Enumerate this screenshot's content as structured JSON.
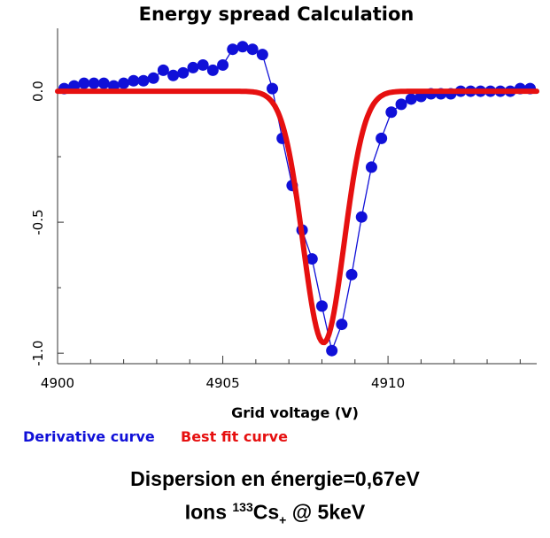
{
  "chart_data": {
    "type": "line",
    "title": "Energy spread Calculation",
    "xlabel": "Grid voltage (V)",
    "ylabel": "",
    "xlim": [
      4900,
      4914.5
    ],
    "ylim": [
      -1.04,
      0.24
    ],
    "x_major_ticks": [
      4900,
      4905,
      4910
    ],
    "x_minor_ticks": [
      4901,
      4902,
      4903,
      4904,
      4906,
      4907,
      4908,
      4909,
      4911,
      4912,
      4913,
      4914
    ],
    "y_major_ticks": [
      0.0,
      -0.5,
      -1.0
    ],
    "x_tick_labels": [
      "4900",
      "4905",
      "4910"
    ],
    "y_tick_labels": [
      "0.0",
      "-0.5",
      "-1.0"
    ],
    "grid": false,
    "legend_position": "bottom-left",
    "series": [
      {
        "name": "Derivative curve",
        "color": "#1010d8",
        "style": "line-with-markers",
        "x": [
          4900.2,
          4900.5,
          4900.8,
          4901.1,
          4901.4,
          4901.7,
          4902.0,
          4902.3,
          4902.6,
          4902.9,
          4903.2,
          4903.5,
          4903.8,
          4904.1,
          4904.4,
          4904.7,
          4905.0,
          4905.3,
          4905.6,
          4905.9,
          4906.2,
          4906.5,
          4906.8,
          4907.1,
          4907.4,
          4907.7,
          4908.0,
          4908.3,
          4908.6,
          4908.9,
          4909.2,
          4909.5,
          4909.8,
          4910.1,
          4910.4,
          4910.7,
          4911.0,
          4911.3,
          4911.6,
          4911.9,
          4912.2,
          4912.5,
          4912.8,
          4913.1,
          4913.4,
          4913.7,
          4914.0,
          4914.3
        ],
        "y": [
          0.01,
          0.02,
          0.03,
          0.03,
          0.03,
          0.02,
          0.03,
          0.04,
          0.04,
          0.05,
          0.08,
          0.06,
          0.07,
          0.09,
          0.1,
          0.08,
          0.1,
          0.16,
          0.17,
          0.16,
          0.14,
          0.01,
          -0.18,
          -0.36,
          -0.53,
          -0.64,
          -0.82,
          -0.99,
          -0.89,
          -0.7,
          -0.48,
          -0.29,
          -0.18,
          -0.08,
          -0.05,
          -0.03,
          -0.02,
          -0.01,
          -0.01,
          -0.01,
          0.0,
          0.0,
          0.0,
          0.0,
          0.0,
          0.0,
          0.01,
          0.01
        ]
      },
      {
        "name": "Best fit curve",
        "color": "#e61010",
        "style": "thick-line",
        "model": "gaussian",
        "baseline": 0.0,
        "amplitude": -0.96,
        "center": 4908.05,
        "sigma": 0.62,
        "x_start": 4900,
        "x_end": 4914.5
      }
    ]
  },
  "caption": {
    "line1": "Dispersion en énergie=0,67eV",
    "line2_prefix": "Ions ",
    "line2_sup": "133",
    "line2_element": "Cs",
    "line2_sub": "+",
    "line2_suffix": " @ 5keV"
  }
}
